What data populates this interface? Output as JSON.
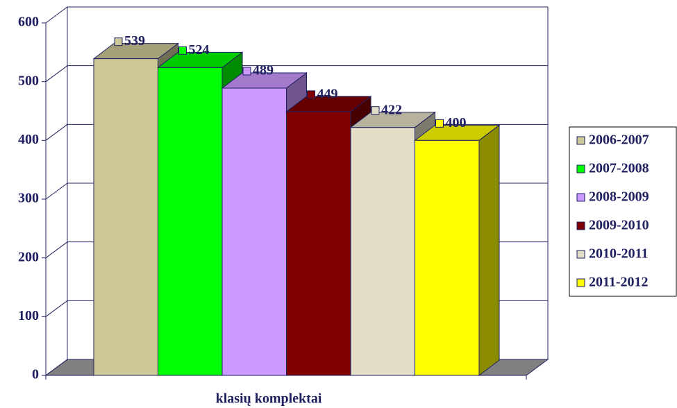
{
  "chart_data": {
    "type": "bar3d",
    "categories": [
      "klasių komplektai"
    ],
    "x_label": "klasių komplektai",
    "series": [
      {
        "name": "2006-2007",
        "color": "#cdc996",
        "values": [
          539
        ]
      },
      {
        "name": "2007-2008",
        "color": "#00ff00",
        "values": [
          524
        ]
      },
      {
        "name": "2008-2009",
        "color": "#cc99ff",
        "values": [
          489
        ]
      },
      {
        "name": "2009-2010",
        "color": "#800000",
        "values": [
          449
        ]
      },
      {
        "name": "2010-2011",
        "color": "#e3dfc6",
        "values": [
          422
        ]
      },
      {
        "name": "2011-2012",
        "color": "#ffff00",
        "values": [
          400
        ]
      }
    ],
    "ylim": [
      0,
      600
    ],
    "yticks": [
      0,
      100,
      200,
      300,
      400,
      500,
      600
    ],
    "grid": true,
    "legend": "right"
  }
}
